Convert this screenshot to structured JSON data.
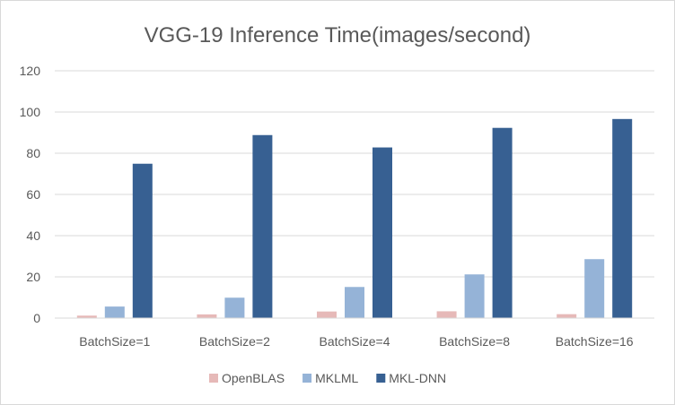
{
  "chart_data": {
    "type": "bar",
    "title": "VGG-19 Inference Time(images/second)",
    "xlabel": "",
    "ylabel": "",
    "categories": [
      "BatchSize=1",
      "BatchSize=2",
      "BatchSize=4",
      "BatchSize=8",
      "BatchSize=16"
    ],
    "series": [
      {
        "name": "OpenBLAS",
        "values": [
          1.2,
          1.8,
          3.2,
          3.3,
          1.9
        ],
        "color": "#e6b9b8"
      },
      {
        "name": "MKLML",
        "values": [
          5.6,
          9.9,
          15.1,
          21.2,
          28.6
        ],
        "color": "#95b3d7"
      },
      {
        "name": "MKL-DNN",
        "values": [
          74.9,
          88.8,
          82.8,
          92.3,
          96.6
        ],
        "color": "#376092"
      }
    ],
    "ylim": [
      0,
      120
    ],
    "yticks": [
      0,
      20,
      40,
      60,
      80,
      100,
      120
    ],
    "grid": true,
    "legend_position": "bottom"
  }
}
